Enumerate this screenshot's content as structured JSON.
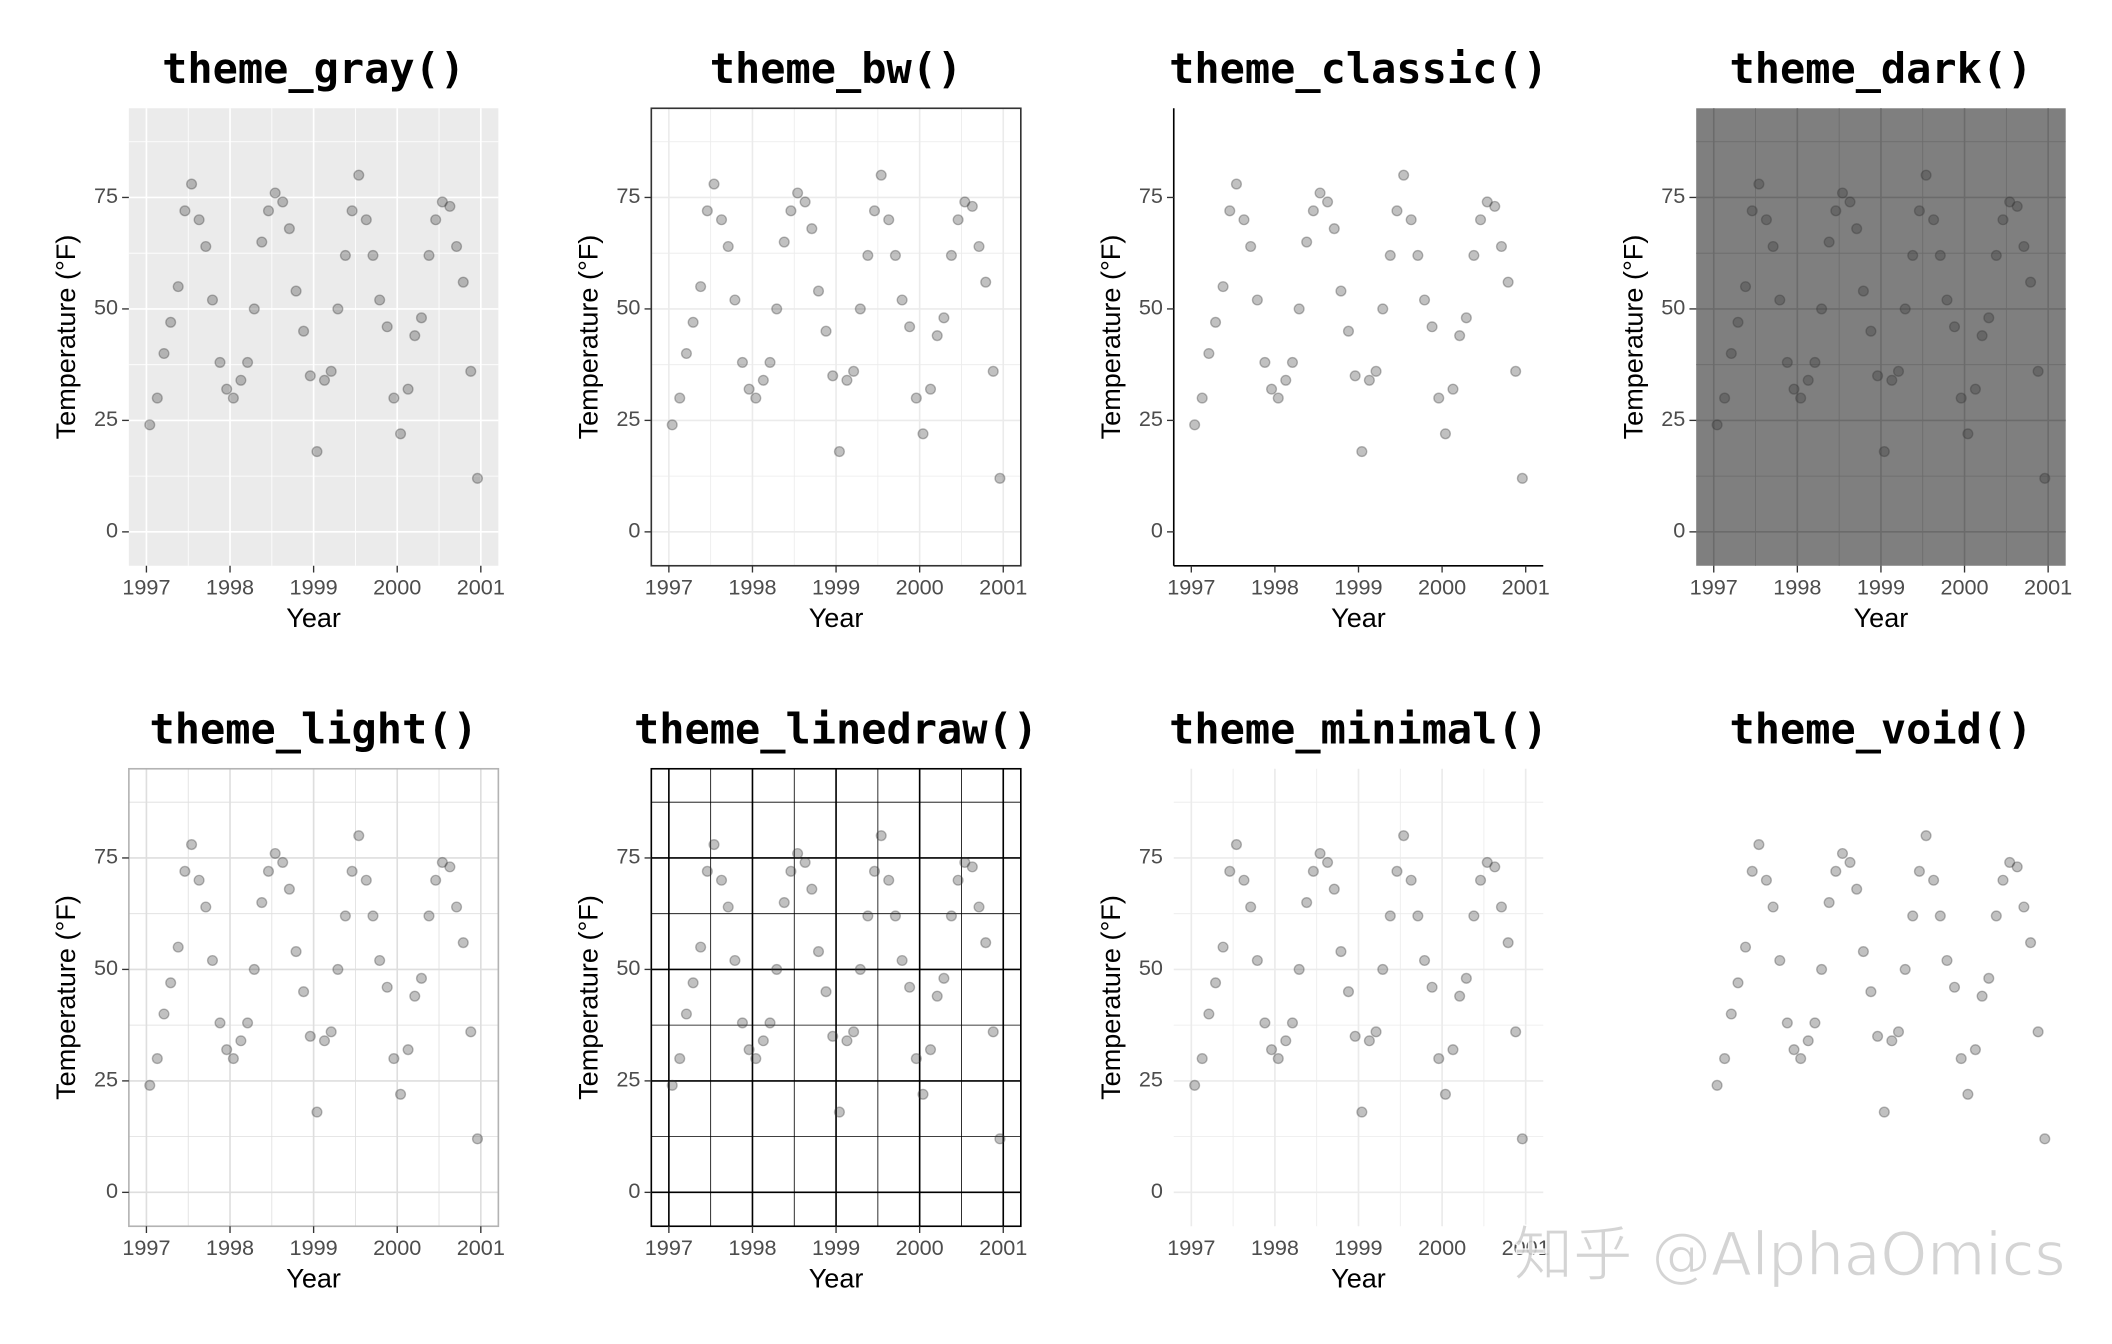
{
  "watermark": "知乎 @AlphaOmics",
  "chart_data": [
    {
      "type": "scatter",
      "title": "theme_gray()",
      "xlabel": "Year",
      "ylabel": "Temperature (°F)",
      "xlim": [
        1996.79,
        2001.21
      ],
      "ylim": [
        -7.6,
        95
      ],
      "xticks": [
        1997,
        1998,
        1999,
        2000,
        2001
      ],
      "yticks": [
        0,
        25,
        50,
        75
      ],
      "xminor": [
        1997.5,
        1998.5,
        1999.5,
        2000.5
      ],
      "yminor": [
        12.5,
        37.5,
        62.5,
        87.5
      ],
      "background": "#ebebeb",
      "grid_color": "#ffffff",
      "border_color": null,
      "axis_line_color": null,
      "tick_marks": true,
      "color": "#333333",
      "x": [
        1997.04,
        1997.13,
        1997.21,
        1997.29,
        1997.38,
        1997.46,
        1997.54,
        1997.63,
        1997.71,
        1997.79,
        1997.88,
        1997.96,
        1998.04,
        1998.13,
        1998.21,
        1998.29,
        1998.38,
        1998.46,
        1998.54,
        1998.63,
        1998.71,
        1998.79,
        1998.88,
        1998.96,
        1999.04,
        1999.13,
        1999.21,
        1999.29,
        1999.38,
        1999.46,
        1999.54,
        1999.63,
        1999.71,
        1999.79,
        1999.88,
        1999.96,
        2000.04,
        2000.13,
        2000.21,
        2000.29,
        2000.38,
        2000.46,
        2000.54,
        2000.63,
        2000.71,
        2000.79,
        2000.88,
        2000.96
      ],
      "values": [
        24,
        30,
        40,
        47,
        55,
        72,
        78,
        70,
        64,
        52,
        38,
        32,
        30,
        34,
        38,
        50,
        65,
        72,
        76,
        74,
        68,
        54,
        45,
        35,
        18,
        34,
        36,
        50,
        62,
        72,
        80,
        70,
        62,
        52,
        46,
        30,
        22,
        32,
        44,
        48,
        62,
        70,
        74,
        73,
        64,
        56,
        36,
        12
      ]
    },
    {
      "type": "scatter",
      "title": "theme_bw()",
      "xlabel": "Year",
      "ylabel": "Temperature (°F)",
      "xlim": [
        1996.79,
        2001.21
      ],
      "ylim": [
        -7.6,
        95
      ],
      "xticks": [
        1997,
        1998,
        1999,
        2000,
        2001
      ],
      "yticks": [
        0,
        25,
        50,
        75
      ],
      "xminor": [
        1997.5,
        1998.5,
        1999.5,
        2000.5
      ],
      "yminor": [
        12.5,
        37.5,
        62.5,
        87.5
      ],
      "background": "#ffffff",
      "grid_color": "#ebebeb",
      "border_color": "#333333",
      "axis_line_color": null,
      "tick_marks": true,
      "color": "#333333",
      "x": [
        1997.04,
        1997.13,
        1997.21,
        1997.29,
        1997.38,
        1997.46,
        1997.54,
        1997.63,
        1997.71,
        1997.79,
        1997.88,
        1997.96,
        1998.04,
        1998.13,
        1998.21,
        1998.29,
        1998.38,
        1998.46,
        1998.54,
        1998.63,
        1998.71,
        1998.79,
        1998.88,
        1998.96,
        1999.04,
        1999.13,
        1999.21,
        1999.29,
        1999.38,
        1999.46,
        1999.54,
        1999.63,
        1999.71,
        1999.79,
        1999.88,
        1999.96,
        2000.04,
        2000.13,
        2000.21,
        2000.29,
        2000.38,
        2000.46,
        2000.54,
        2000.63,
        2000.71,
        2000.79,
        2000.88,
        2000.96
      ],
      "values": [
        24,
        30,
        40,
        47,
        55,
        72,
        78,
        70,
        64,
        52,
        38,
        32,
        30,
        34,
        38,
        50,
        65,
        72,
        76,
        74,
        68,
        54,
        45,
        35,
        18,
        34,
        36,
        50,
        62,
        72,
        80,
        70,
        62,
        52,
        46,
        30,
        22,
        32,
        44,
        48,
        62,
        70,
        74,
        73,
        64,
        56,
        36,
        12
      ]
    },
    {
      "type": "scatter",
      "title": "theme_classic()",
      "xlabel": "Year",
      "ylabel": "Temperature (°F)",
      "xlim": [
        1996.79,
        2001.21
      ],
      "ylim": [
        -7.6,
        95
      ],
      "xticks": [
        1997,
        1998,
        1999,
        2000,
        2001
      ],
      "yticks": [
        0,
        25,
        50,
        75
      ],
      "background": "#ffffff",
      "grid_color": null,
      "border_color": null,
      "axis_line_color": "#000000",
      "tick_marks": true,
      "color": "#333333",
      "x": [
        1997.04,
        1997.13,
        1997.21,
        1997.29,
        1997.38,
        1997.46,
        1997.54,
        1997.63,
        1997.71,
        1997.79,
        1997.88,
        1997.96,
        1998.04,
        1998.13,
        1998.21,
        1998.29,
        1998.38,
        1998.46,
        1998.54,
        1998.63,
        1998.71,
        1998.79,
        1998.88,
        1998.96,
        1999.04,
        1999.13,
        1999.21,
        1999.29,
        1999.38,
        1999.46,
        1999.54,
        1999.63,
        1999.71,
        1999.79,
        1999.88,
        1999.96,
        2000.04,
        2000.13,
        2000.21,
        2000.29,
        2000.38,
        2000.46,
        2000.54,
        2000.63,
        2000.71,
        2000.79,
        2000.88,
        2000.96
      ],
      "values": [
        24,
        30,
        40,
        47,
        55,
        72,
        78,
        70,
        64,
        52,
        38,
        32,
        30,
        34,
        38,
        50,
        65,
        72,
        76,
        74,
        68,
        54,
        45,
        35,
        18,
        34,
        36,
        50,
        62,
        72,
        80,
        70,
        62,
        52,
        46,
        30,
        22,
        32,
        44,
        48,
        62,
        70,
        74,
        73,
        64,
        56,
        36,
        12
      ]
    },
    {
      "type": "scatter",
      "title": "theme_dark()",
      "xlabel": "Year",
      "ylabel": "Temperature (°F)",
      "xlim": [
        1996.79,
        2001.21
      ],
      "ylim": [
        -7.6,
        95
      ],
      "xticks": [
        1997,
        1998,
        1999,
        2000,
        2001
      ],
      "yticks": [
        0,
        25,
        50,
        75
      ],
      "xminor": [
        1997.5,
        1998.5,
        1999.5,
        2000.5
      ],
      "yminor": [
        12.5,
        37.5,
        62.5,
        87.5
      ],
      "background": "#7f7f7f",
      "grid_color": "#6b6b6b",
      "border_color": null,
      "axis_line_color": null,
      "tick_marks": true,
      "color": "#333333",
      "x": [
        1997.04,
        1997.13,
        1997.21,
        1997.29,
        1997.38,
        1997.46,
        1997.54,
        1997.63,
        1997.71,
        1997.79,
        1997.88,
        1997.96,
        1998.04,
        1998.13,
        1998.21,
        1998.29,
        1998.38,
        1998.46,
        1998.54,
        1998.63,
        1998.71,
        1998.79,
        1998.88,
        1998.96,
        1999.04,
        1999.13,
        1999.21,
        1999.29,
        1999.38,
        1999.46,
        1999.54,
        1999.63,
        1999.71,
        1999.79,
        1999.88,
        1999.96,
        2000.04,
        2000.13,
        2000.21,
        2000.29,
        2000.38,
        2000.46,
        2000.54,
        2000.63,
        2000.71,
        2000.79,
        2000.88,
        2000.96
      ],
      "values": [
        24,
        30,
        40,
        47,
        55,
        72,
        78,
        70,
        64,
        52,
        38,
        32,
        30,
        34,
        38,
        50,
        65,
        72,
        76,
        74,
        68,
        54,
        45,
        35,
        18,
        34,
        36,
        50,
        62,
        72,
        80,
        70,
        62,
        52,
        46,
        30,
        22,
        32,
        44,
        48,
        62,
        70,
        74,
        73,
        64,
        56,
        36,
        12
      ]
    },
    {
      "type": "scatter",
      "title": "theme_light()",
      "xlabel": "Year",
      "ylabel": "Temperature (°F)",
      "xlim": [
        1996.79,
        2001.21
      ],
      "ylim": [
        -7.6,
        95
      ],
      "xticks": [
        1997,
        1998,
        1999,
        2000,
        2001
      ],
      "yticks": [
        0,
        25,
        50,
        75
      ],
      "xminor": [
        1997.5,
        1998.5,
        1999.5,
        2000.5
      ],
      "yminor": [
        12.5,
        37.5,
        62.5,
        87.5
      ],
      "background": "#ffffff",
      "grid_color": "#dedede",
      "border_color": "#b3b3b3",
      "axis_line_color": null,
      "tick_marks": true,
      "color": "#333333",
      "x": [
        1997.04,
        1997.13,
        1997.21,
        1997.29,
        1997.38,
        1997.46,
        1997.54,
        1997.63,
        1997.71,
        1997.79,
        1997.88,
        1997.96,
        1998.04,
        1998.13,
        1998.21,
        1998.29,
        1998.38,
        1998.46,
        1998.54,
        1998.63,
        1998.71,
        1998.79,
        1998.88,
        1998.96,
        1999.04,
        1999.13,
        1999.21,
        1999.29,
        1999.38,
        1999.46,
        1999.54,
        1999.63,
        1999.71,
        1999.79,
        1999.88,
        1999.96,
        2000.04,
        2000.13,
        2000.21,
        2000.29,
        2000.38,
        2000.46,
        2000.54,
        2000.63,
        2000.71,
        2000.79,
        2000.88,
        2000.96
      ],
      "values": [
        24,
        30,
        40,
        47,
        55,
        72,
        78,
        70,
        64,
        52,
        38,
        32,
        30,
        34,
        38,
        50,
        65,
        72,
        76,
        74,
        68,
        54,
        45,
        35,
        18,
        34,
        36,
        50,
        62,
        72,
        80,
        70,
        62,
        52,
        46,
        30,
        22,
        32,
        44,
        48,
        62,
        70,
        74,
        73,
        64,
        56,
        36,
        12
      ]
    },
    {
      "type": "scatter",
      "title": "theme_linedraw()",
      "xlabel": "Year",
      "ylabel": "Temperature (°F)",
      "xlim": [
        1996.79,
        2001.21
      ],
      "ylim": [
        -7.6,
        95
      ],
      "xticks": [
        1997,
        1998,
        1999,
        2000,
        2001
      ],
      "yticks": [
        0,
        25,
        50,
        75
      ],
      "xminor": [
        1997.5,
        1998.5,
        1999.5,
        2000.5
      ],
      "yminor": [
        12.5,
        37.5,
        62.5,
        87.5
      ],
      "background": "#ffffff",
      "grid_color": "#000000",
      "border_color": "#000000",
      "axis_line_color": null,
      "tick_marks": true,
      "color": "#333333",
      "x": [
        1997.04,
        1997.13,
        1997.21,
        1997.29,
        1997.38,
        1997.46,
        1997.54,
        1997.63,
        1997.71,
        1997.79,
        1997.88,
        1997.96,
        1998.04,
        1998.13,
        1998.21,
        1998.29,
        1998.38,
        1998.46,
        1998.54,
        1998.63,
        1998.71,
        1998.79,
        1998.88,
        1998.96,
        1999.04,
        1999.13,
        1999.21,
        1999.29,
        1999.38,
        1999.46,
        1999.54,
        1999.63,
        1999.71,
        1999.79,
        1999.88,
        1999.96,
        2000.04,
        2000.13,
        2000.21,
        2000.29,
        2000.38,
        2000.46,
        2000.54,
        2000.63,
        2000.71,
        2000.79,
        2000.88,
        2000.96
      ],
      "values": [
        24,
        30,
        40,
        47,
        55,
        72,
        78,
        70,
        64,
        52,
        38,
        32,
        30,
        34,
        38,
        50,
        65,
        72,
        76,
        74,
        68,
        54,
        45,
        35,
        18,
        34,
        36,
        50,
        62,
        72,
        80,
        70,
        62,
        52,
        46,
        30,
        22,
        32,
        44,
        48,
        62,
        70,
        74,
        73,
        64,
        56,
        36,
        12
      ]
    },
    {
      "type": "scatter",
      "title": "theme_minimal()",
      "xlabel": "Year",
      "ylabel": "Temperature (°F)",
      "xlim": [
        1996.79,
        2001.21
      ],
      "ylim": [
        -7.6,
        95
      ],
      "xticks": [
        1997,
        1998,
        1999,
        2000,
        2001
      ],
      "yticks": [
        0,
        25,
        50,
        75
      ],
      "xminor": [
        1997.5,
        1998.5,
        1999.5,
        2000.5
      ],
      "yminor": [
        12.5,
        37.5,
        62.5,
        87.5
      ],
      "background": "#ffffff",
      "grid_color": "#ebebeb",
      "border_color": null,
      "axis_line_color": null,
      "tick_marks": false,
      "color": "#333333",
      "x": [
        1997.04,
        1997.13,
        1997.21,
        1997.29,
        1997.38,
        1997.46,
        1997.54,
        1997.63,
        1997.71,
        1997.79,
        1997.88,
        1997.96,
        1998.04,
        1998.13,
        1998.21,
        1998.29,
        1998.38,
        1998.46,
        1998.54,
        1998.63,
        1998.71,
        1998.79,
        1998.88,
        1998.96,
        1999.04,
        1999.13,
        1999.21,
        1999.29,
        1999.38,
        1999.46,
        1999.54,
        1999.63,
        1999.71,
        1999.79,
        1999.88,
        1999.96,
        2000.04,
        2000.13,
        2000.21,
        2000.29,
        2000.38,
        2000.46,
        2000.54,
        2000.63,
        2000.71,
        2000.79,
        2000.88,
        2000.96
      ],
      "values": [
        24,
        30,
        40,
        47,
        55,
        72,
        78,
        70,
        64,
        52,
        38,
        32,
        30,
        34,
        38,
        50,
        65,
        72,
        76,
        74,
        68,
        54,
        45,
        35,
        18,
        34,
        36,
        50,
        62,
        72,
        80,
        70,
        62,
        52,
        46,
        30,
        22,
        32,
        44,
        48,
        62,
        70,
        74,
        73,
        64,
        56,
        36,
        12
      ]
    },
    {
      "type": "scatter",
      "title": "theme_void()",
      "xlim": [
        1996.79,
        2001.21
      ],
      "ylim": [
        -7.6,
        95
      ],
      "background": "#ffffff",
      "grid_color": null,
      "border_color": null,
      "axis_line_color": null,
      "tick_marks": false,
      "color": "#333333",
      "x": [
        1997.04,
        1997.13,
        1997.21,
        1997.29,
        1997.38,
        1997.46,
        1997.54,
        1997.63,
        1997.71,
        1997.79,
        1997.88,
        1997.96,
        1998.04,
        1998.13,
        1998.21,
        1998.29,
        1998.38,
        1998.46,
        1998.54,
        1998.63,
        1998.71,
        1998.79,
        1998.88,
        1998.96,
        1999.04,
        1999.13,
        1999.21,
        1999.29,
        1999.38,
        1999.46,
        1999.54,
        1999.63,
        1999.71,
        1999.79,
        1999.88,
        1999.96,
        2000.04,
        2000.13,
        2000.21,
        2000.29,
        2000.38,
        2000.46,
        2000.54,
        2000.63,
        2000.71,
        2000.79,
        2000.88,
        2000.96
      ],
      "values": [
        24,
        30,
        40,
        47,
        55,
        72,
        78,
        70,
        64,
        52,
        38,
        32,
        30,
        34,
        38,
        50,
        65,
        72,
        76,
        74,
        68,
        54,
        45,
        35,
        18,
        34,
        36,
        50,
        62,
        72,
        80,
        70,
        62,
        52,
        46,
        30,
        22,
        32,
        44,
        48,
        62,
        70,
        74,
        73,
        64,
        56,
        36,
        12
      ]
    }
  ]
}
